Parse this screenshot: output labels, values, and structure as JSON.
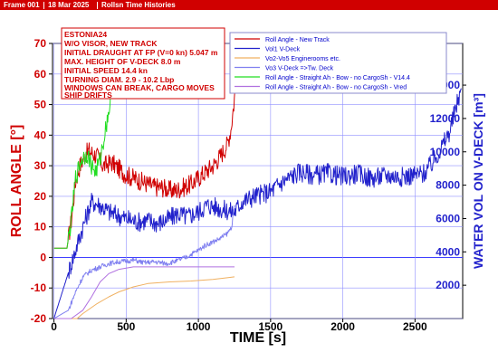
{
  "header": {
    "frame_label": "Frame 001",
    "date": "18 Mar 2025",
    "title": "Rollsn Time Histories"
  },
  "inset": {
    "lines": [
      "ESTONIA24",
      "W/O VISOR, NEW TRACK",
      "INITIAL DRAUGHT AT FP (V=0 kn) 5.047 m",
      "MAX. HEIGHT OF V-DECK 8.0 m",
      "INITIAL SPEED 14.4 kn",
      "TURNING DIAM. 2.9 - 10.2 Lbp",
      "WINDOWS CAN BREAK, CARGO MOVES",
      "SHIP DRIFTS"
    ]
  },
  "chart_data": {
    "type": "line",
    "xlabel": "TIME [s]",
    "ylabel": "ROLL ANGLE [°]",
    "y2label": "WATER VOL ON V-DECK [m³]",
    "xlim": [
      -10,
      2830
    ],
    "ylim": [
      -20,
      70
    ],
    "y2lim": [
      0,
      16500
    ],
    "x_ticks": [
      0,
      500,
      1000,
      1500,
      2000,
      2500
    ],
    "y_ticks": [
      -20,
      -10,
      0,
      10,
      20,
      30,
      40,
      50,
      60,
      70
    ],
    "y2_ticks": [
      2000,
      4000,
      6000,
      8000,
      10000,
      12000,
      14000
    ],
    "legend_position": "top-right",
    "series": [
      {
        "name": "Roll Angle - New Track",
        "axis": "left",
        "color": "#d00000",
        "noise": 3.2,
        "width": 1,
        "points": [
          [
            0,
            3
          ],
          [
            90,
            3
          ],
          [
            120,
            12
          ],
          [
            150,
            25
          ],
          [
            180,
            30
          ],
          [
            210,
            33
          ],
          [
            240,
            35
          ],
          [
            270,
            34
          ],
          [
            300,
            33
          ],
          [
            340,
            30
          ],
          [
            400,
            31
          ],
          [
            450,
            29
          ],
          [
            500,
            27
          ],
          [
            550,
            26
          ],
          [
            600,
            25
          ],
          [
            650,
            24
          ],
          [
            700,
            23
          ],
          [
            750,
            23
          ],
          [
            800,
            22
          ],
          [
            850,
            22
          ],
          [
            900,
            23
          ],
          [
            950,
            24
          ],
          [
            1000,
            26
          ],
          [
            1050,
            28
          ],
          [
            1100,
            30
          ],
          [
            1150,
            33
          ],
          [
            1200,
            37
          ],
          [
            1225,
            42
          ],
          [
            1245,
            50
          ],
          [
            1260,
            58
          ],
          [
            1275,
            68
          ]
        ]
      },
      {
        "name": "Vol1 V-Deck",
        "axis": "right",
        "color": "#2222cc",
        "noise": 600,
        "width": 1,
        "points": [
          [
            0,
            10
          ],
          [
            200,
            5500
          ],
          [
            260,
            7000
          ],
          [
            320,
            6800
          ],
          [
            380,
            6400
          ],
          [
            440,
            6200
          ],
          [
            500,
            6000
          ],
          [
            580,
            5800
          ],
          [
            650,
            5900
          ],
          [
            720,
            5700
          ],
          [
            800,
            6000
          ],
          [
            860,
            6300
          ],
          [
            920,
            6100
          ],
          [
            1000,
            6400
          ],
          [
            1060,
            6800
          ],
          [
            1120,
            6700
          ],
          [
            1180,
            6500
          ],
          [
            1250,
            6400
          ],
          [
            1300,
            7000
          ],
          [
            1380,
            7300
          ],
          [
            1450,
            7500
          ],
          [
            1500,
            7600
          ],
          [
            1550,
            8000
          ],
          [
            1600,
            8300
          ],
          [
            1700,
            8800
          ],
          [
            1800,
            8600
          ],
          [
            1900,
            8700
          ],
          [
            2000,
            8500
          ],
          [
            2100,
            8700
          ],
          [
            2200,
            8400
          ],
          [
            2300,
            8600
          ],
          [
            2400,
            8500
          ],
          [
            2500,
            8600
          ],
          [
            2560,
            8700
          ],
          [
            2620,
            9300
          ],
          [
            2680,
            10200
          ],
          [
            2740,
            11200
          ],
          [
            2800,
            13200
          ],
          [
            2820,
            13800
          ]
        ]
      },
      {
        "name": "Vo2-Vo5 Enginerooms etc.",
        "axis": "right",
        "color": "#f0b060",
        "noise": 0,
        "width": 1,
        "points": [
          [
            0,
            0
          ],
          [
            160,
            0
          ],
          [
            200,
            300
          ],
          [
            250,
            600
          ],
          [
            300,
            900
          ],
          [
            380,
            1300
          ],
          [
            450,
            1600
          ],
          [
            550,
            1900
          ],
          [
            650,
            2100
          ],
          [
            800,
            2200
          ],
          [
            950,
            2250
          ],
          [
            1100,
            2350
          ],
          [
            1200,
            2450
          ],
          [
            1250,
            2500
          ]
        ]
      },
      {
        "name": "Vo3 V-Deck =>Tw. Deck",
        "axis": "right",
        "color": "#8080f0",
        "noise": 150,
        "width": 1,
        "points": [
          [
            0,
            0
          ],
          [
            100,
            500
          ],
          [
            150,
            1600
          ],
          [
            200,
            2500
          ],
          [
            260,
            2900
          ],
          [
            320,
            3100
          ],
          [
            380,
            3300
          ],
          [
            440,
            3400
          ],
          [
            500,
            3450
          ],
          [
            560,
            3500
          ],
          [
            620,
            3350
          ],
          [
            700,
            3400
          ],
          [
            780,
            3300
          ],
          [
            850,
            3450
          ],
          [
            920,
            3700
          ],
          [
            1000,
            4100
          ],
          [
            1050,
            4400
          ],
          [
            1100,
            4600
          ],
          [
            1150,
            4800
          ],
          [
            1200,
            5100
          ],
          [
            1230,
            5500
          ],
          [
            1250,
            6800
          ]
        ]
      },
      {
        "name": "Roll Angle - Straight Ah - Bow - no CargoSh - V14.4",
        "axis": "left",
        "color": "#22dd22",
        "noise": 3,
        "width": 1,
        "points": [
          [
            0,
            3
          ],
          [
            90,
            3
          ],
          [
            120,
            12
          ],
          [
            150,
            26
          ],
          [
            190,
            32
          ],
          [
            230,
            34
          ],
          [
            260,
            30
          ],
          [
            290,
            28
          ],
          [
            320,
            32
          ],
          [
            350,
            40
          ],
          [
            380,
            48
          ],
          [
            400,
            54
          ],
          [
            415,
            60
          ]
        ]
      },
      {
        "name": "Roll Angle - Straight Ah - Bow - no CargoSh - Vred",
        "axis": "right",
        "color": "#b070e0",
        "noise": 0,
        "width": 1,
        "points": [
          [
            0,
            0
          ],
          [
            120,
            0
          ],
          [
            200,
            500
          ],
          [
            260,
            1300
          ],
          [
            320,
            2200
          ],
          [
            380,
            2700
          ],
          [
            450,
            2950
          ],
          [
            550,
            3100
          ],
          [
            700,
            3100
          ],
          [
            900,
            3100
          ],
          [
            1100,
            3100
          ],
          [
            1250,
            3100
          ]
        ]
      }
    ]
  }
}
